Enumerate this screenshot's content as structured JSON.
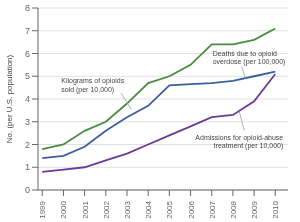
{
  "chart_data": {
    "type": "line",
    "ylabel": "No. (per U.S. population)",
    "x": [
      1999,
      2000,
      2001,
      2002,
      2003,
      2004,
      2005,
      2006,
      2007,
      2008,
      2009,
      2010
    ],
    "series": [
      {
        "color": "#4a8c3f",
        "values": [
          1.8,
          2.0,
          2.6,
          3.0,
          3.8,
          4.7,
          5.0,
          5.5,
          6.4,
          6.4,
          6.6,
          7.1
        ]
      },
      {
        "color": "#3a5fa0",
        "values": [
          1.4,
          1.5,
          1.9,
          2.6,
          3.2,
          3.7,
          4.6,
          4.65,
          4.7,
          4.8,
          5.0,
          5.2
        ]
      },
      {
        "color": "#6a3a9a",
        "values": [
          0.8,
          0.9,
          1.0,
          1.3,
          1.6,
          2.0,
          2.4,
          2.8,
          3.2,
          3.3,
          3.9,
          5.1
        ]
      }
    ],
    "xlim": [
      1998.8,
      2010.6
    ],
    "xticks": [
      1999,
      2000,
      2001,
      2002,
      2003,
      2004,
      2005,
      2006,
      2007,
      2008,
      2009,
      2010
    ],
    "ylim": [
      0,
      8
    ],
    "yticks": [
      0,
      1,
      2,
      3,
      4,
      5,
      6,
      7,
      8
    ],
    "grid": true,
    "annotations": [
      {
        "text": "Kilograms of opioids\nsold (per 10,000)",
        "x": 2003.2,
        "y": 3.55
      },
      {
        "text": "Deaths due to opioid\noverdose (per 100,000)",
        "x": 2008.6,
        "y": 4.9
      },
      {
        "text": "Admissions for opioid-abuse\ntreatment (per 10,000)",
        "x": 2008.3,
        "y": 3.45
      }
    ]
  }
}
